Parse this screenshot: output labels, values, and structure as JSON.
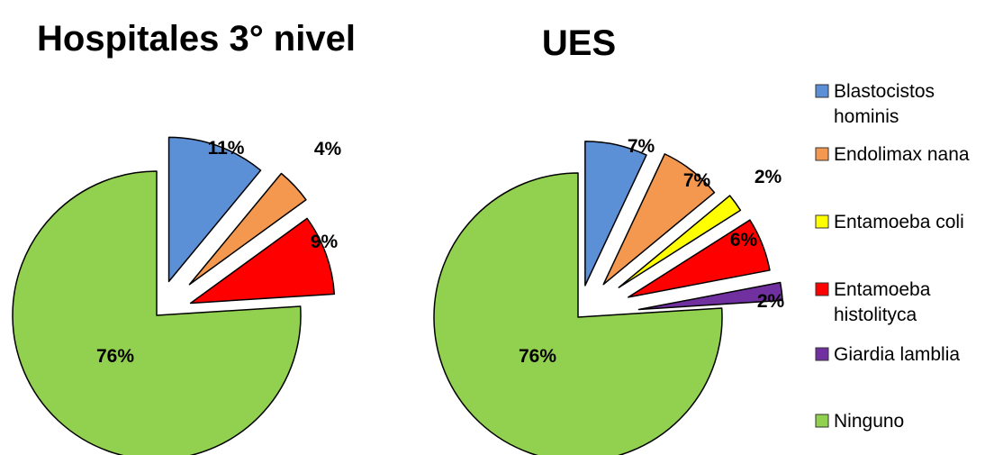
{
  "legend": [
    {
      "label_lines": [
        "Blastocistos",
        "hominis"
      ],
      "color": "#5b8fd6"
    },
    {
      "label_lines": [
        "Endolimax nana"
      ],
      "color": "#f4984f"
    },
    {
      "label_lines": [
        "Entamoeba coli"
      ],
      "color": "#ffff00"
    },
    {
      "label_lines": [
        "Entamoeba",
        "histolityca"
      ],
      "color": "#ff0000"
    },
    {
      "label_lines": [
        "Giardia lamblia"
      ],
      "color": "#7030a0"
    },
    {
      "label_lines": [
        "Ninguno"
      ],
      "color": "#92d050"
    }
  ],
  "chart_data": [
    {
      "type": "pie",
      "title": "Hospitales 3° nivel",
      "slices": [
        {
          "category": "Blastocistos hominis",
          "value": 11,
          "label": "11%",
          "color": "#5b8fd6"
        },
        {
          "category": "Endolimax nana",
          "value": 4,
          "label": "4%",
          "color": "#f4984f"
        },
        {
          "category": "Entamoeba histolityca",
          "value": 9,
          "label": "9%",
          "color": "#ff0000"
        },
        {
          "category": "Ninguno",
          "value": 76,
          "label": "76%",
          "color": "#92d050"
        }
      ]
    },
    {
      "type": "pie",
      "title": "UES",
      "slices": [
        {
          "category": "Blastocistos hominis",
          "value": 7,
          "label": "7%",
          "color": "#5b8fd6"
        },
        {
          "category": "Endolimax nana",
          "value": 7,
          "label": "7%",
          "color": "#f4984f"
        },
        {
          "category": "Entamoeba coli",
          "value": 2,
          "label": "2%",
          "color": "#ffff00"
        },
        {
          "category": "Entamoeba histolityca",
          "value": 6,
          "label": "6%",
          "color": "#ff0000"
        },
        {
          "category": "Giardia lamblia",
          "value": 2,
          "label": "2%",
          "color": "#7030a0"
        },
        {
          "category": "Ninguno",
          "value": 76,
          "label": "76%",
          "color": "#92d050"
        }
      ]
    }
  ]
}
